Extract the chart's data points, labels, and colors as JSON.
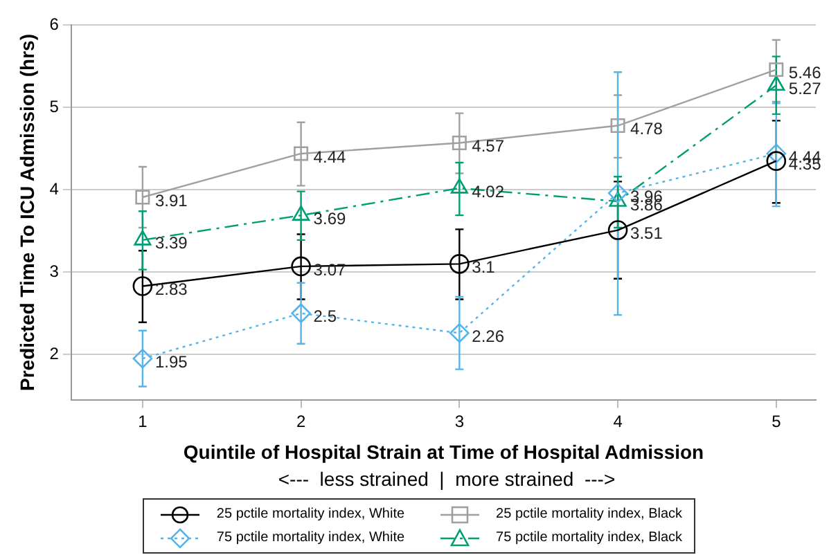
{
  "chart_data": {
    "type": "line",
    "xlabel": "Quintile of Hospital Strain at Time of Hospital Admission",
    "ylabel": "Predicted Time To ICU Admission (hrs)",
    "annotations": [
      "<---  less strained  |  more strained  --->"
    ],
    "x": [
      1,
      2,
      3,
      4,
      5
    ],
    "xlim": [
      0.55,
      5.25
    ],
    "xticks": [
      1,
      2,
      3,
      4,
      5
    ],
    "ylim": [
      1.45,
      6
    ],
    "yticks": [
      2,
      3,
      4,
      5,
      6
    ],
    "grid": "y",
    "legend": "bottom",
    "data_labels": true,
    "series": [
      {
        "name": "25 pctile mortality index, White",
        "color": "#000000",
        "marker": "circle",
        "line_style": "solid",
        "values": [
          2.83,
          3.07,
          3.1,
          3.51,
          4.35
        ],
        "errors": [
          [
            2.39,
            3.26
          ],
          [
            2.67,
            3.46
          ],
          [
            2.67,
            3.52
          ],
          [
            2.92,
            4.1
          ],
          [
            3.84,
            4.84
          ]
        ]
      },
      {
        "name": "25 pctile mortality index, Black",
        "color": "#a0a0a0",
        "marker": "square",
        "line_style": "solid",
        "values": [
          3.91,
          4.44,
          4.57,
          4.78,
          5.46
        ],
        "errors": [
          [
            3.54,
            4.28
          ],
          [
            4.05,
            4.82
          ],
          [
            4.2,
            4.93
          ],
          [
            4.39,
            5.15
          ],
          [
            5.07,
            5.82
          ]
        ]
      },
      {
        "name": "75 pctile mortality index, White",
        "color": "#56b4e9",
        "marker": "diamond",
        "line_style": "dotted",
        "values": [
          1.95,
          2.5,
          2.26,
          3.96,
          4.44
        ],
        "errors": [
          [
            1.61,
            2.29
          ],
          [
            2.13,
            2.87
          ],
          [
            1.82,
            2.7
          ],
          [
            2.48,
            5.43
          ],
          [
            3.8,
            5.05
          ]
        ]
      },
      {
        "name": "75 pctile mortality index, Black",
        "color": "#009e73",
        "marker": "triangle",
        "line_style": "dashed",
        "values": [
          3.39,
          3.69,
          4.02,
          3.86,
          5.27
        ],
        "errors": [
          [
            3.03,
            3.74
          ],
          [
            3.39,
            3.98
          ],
          [
            3.69,
            4.33
          ],
          [
            3.54,
            4.16
          ],
          [
            4.92,
            5.62
          ]
        ]
      }
    ]
  }
}
